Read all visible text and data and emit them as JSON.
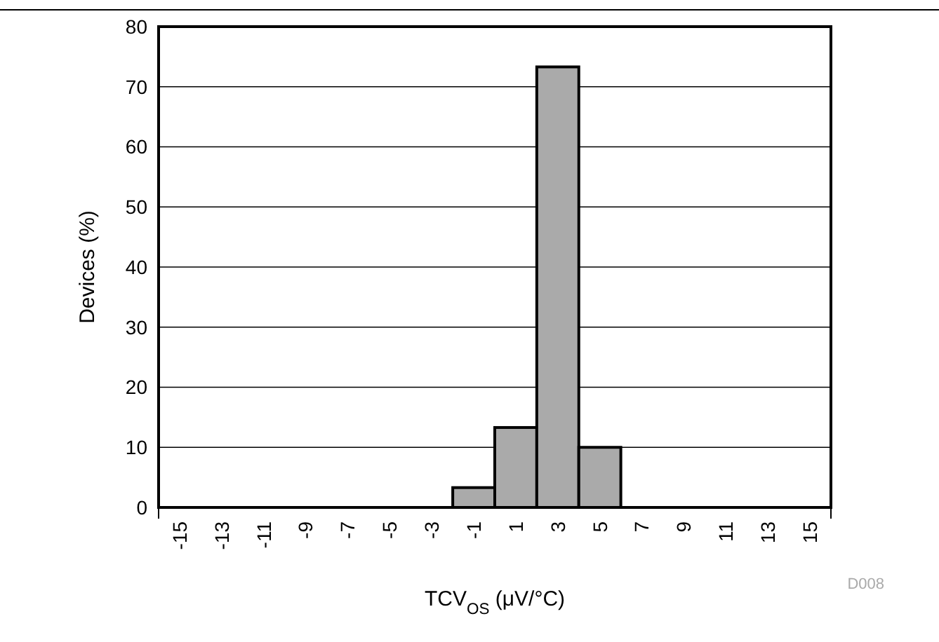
{
  "chart_data": {
    "type": "bar",
    "xlabel": "TCV$_{OS}$ (μV/°C)",
    "ylabel": "Devices (%)",
    "categories": [
      "-15",
      "-13",
      "-11",
      "-9",
      "-7",
      "-5",
      "-3",
      "-1",
      "1",
      "3",
      "5",
      "7",
      "9",
      "11",
      "13",
      "15"
    ],
    "values": [
      0,
      0,
      0,
      0,
      0,
      0,
      0,
      3.3,
      13.3,
      73.3,
      10,
      0,
      0,
      0,
      0,
      0
    ],
    "color": "#aaaaaa",
    "ylim": [
      0,
      80
    ],
    "yticks": [
      0,
      10,
      20,
      30,
      40,
      50,
      60,
      70,
      80
    ],
    "grid": "y",
    "annotations": [
      "D008"
    ]
  }
}
